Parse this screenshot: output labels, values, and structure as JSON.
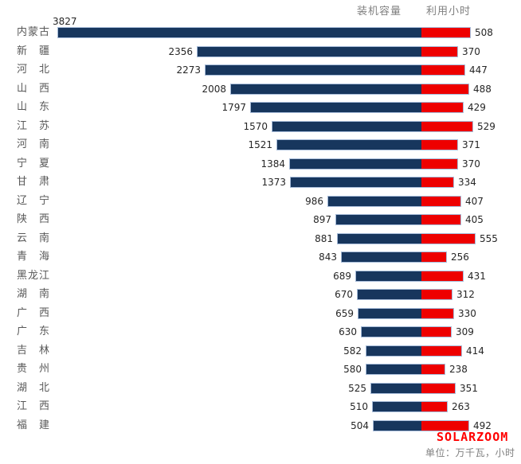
{
  "chart_data": {
    "type": "bar",
    "orientation": "horizontal-diverging",
    "title": "",
    "legend": {
      "capacity": "装机容量",
      "hours": "利用小时",
      "position": "top"
    },
    "categories": [
      "内蒙古",
      "新　疆",
      "河　北",
      "山　西",
      "山　东",
      "江　苏",
      "河　南",
      "宁　夏",
      "甘　肃",
      "辽　宁",
      "陕　西",
      "云　南",
      "青　海",
      "黑龙江",
      "湖　南",
      "广　西",
      "广　东",
      "吉　林",
      "贵　州",
      "湖　北",
      "江　西",
      "福　建"
    ],
    "series": [
      {
        "name": "装机容量",
        "color": "#17365D",
        "values": [
          3827,
          2356,
          2273,
          2008,
          1797,
          1570,
          1521,
          1384,
          1373,
          986,
          897,
          881,
          843,
          689,
          670,
          659,
          630,
          582,
          580,
          525,
          510,
          504
        ]
      },
      {
        "name": "利用小时",
        "color": "#EE0000",
        "values": [
          508,
          370,
          447,
          488,
          429,
          529,
          371,
          370,
          334,
          407,
          405,
          555,
          256,
          431,
          312,
          330,
          309,
          414,
          238,
          351,
          263,
          492
        ]
      }
    ],
    "axis": {
      "capacity_max": 3827,
      "hours_max": 555,
      "gridlines": false,
      "data_labels": "outside-end"
    }
  },
  "footer": {
    "logo": "SOLARZOOM",
    "unit_note": "单位：万千瓦，小时"
  },
  "colors": {
    "capacity_bar": "#17365D",
    "hours_bar": "#EE0000",
    "bar_outline": "#A7BCD9",
    "logo": "#FF0000",
    "label_gray": "#595959",
    "header_gray": "#808080",
    "value_text": "#262626"
  }
}
